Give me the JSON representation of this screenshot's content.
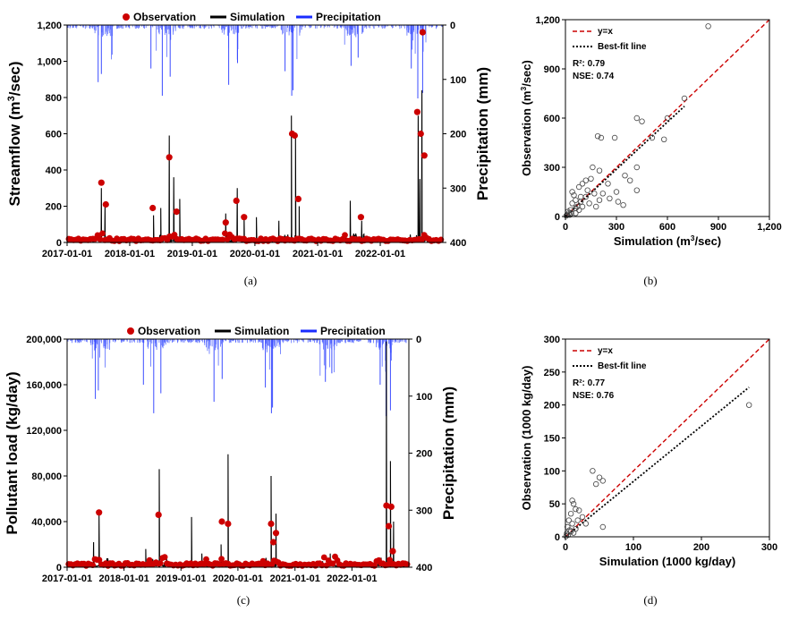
{
  "chart_data": [
    {
      "id": "a",
      "type": "line",
      "panel_label": "(a)",
      "ylabel": "Streamflow (m³/sec)",
      "y2label": "Precipitation (mm)",
      "legend": {
        "obs": "Observation",
        "sim": "Simulation",
        "pre": "Precipitation"
      },
      "ylim": [
        0,
        1200
      ],
      "yticks": [
        "0",
        "200",
        "400",
        "600",
        "800",
        "1,000",
        "1,200"
      ],
      "y2lim": [
        0,
        400
      ],
      "y2ticks": [
        "0",
        "100",
        "200",
        "300",
        "400"
      ],
      "xticks": [
        "2017-01-01",
        "2018-01-01",
        "2019-01-01",
        "2020-01-01",
        "2021-01-01",
        "2022-01-01"
      ],
      "xrange": [
        "2017-01-01",
        "2023-01-01"
      ],
      "sim_peaks": [
        [
          "2017-07-20",
          300
        ],
        [
          "2017-08-10",
          200
        ],
        [
          "2018-05-20",
          150
        ],
        [
          "2018-07-01",
          190
        ],
        [
          "2018-08-20",
          590
        ],
        [
          "2018-09-15",
          360
        ],
        [
          "2018-10-20",
          240
        ],
        [
          "2019-07-15",
          160
        ],
        [
          "2019-09-20",
          300
        ],
        [
          "2019-10-30",
          150
        ],
        [
          "2020-01-10",
          140
        ],
        [
          "2020-05-20",
          120
        ],
        [
          "2020-08-01",
          700
        ],
        [
          "2020-08-25",
          600
        ],
        [
          "2020-09-15",
          200
        ],
        [
          "2021-07-10",
          230
        ],
        [
          "2021-09-15",
          120
        ],
        [
          "2022-08-10",
          700
        ],
        [
          "2022-08-20",
          350
        ],
        [
          "2022-09-01",
          840
        ]
      ],
      "obs_peaks": [
        [
          "2017-07-20",
          330
        ],
        [
          "2017-08-15",
          210
        ],
        [
          "2018-05-15",
          190
        ],
        [
          "2018-08-20",
          470
        ],
        [
          "2018-10-01",
          170
        ],
        [
          "2019-07-15",
          110
        ],
        [
          "2019-09-15",
          230
        ],
        [
          "2019-10-30",
          140
        ],
        [
          "2020-08-05",
          600
        ],
        [
          "2020-08-20",
          590
        ],
        [
          "2020-09-10",
          240
        ],
        [
          "2021-09-10",
          140
        ],
        [
          "2022-08-05",
          720
        ],
        [
          "2022-08-25",
          600
        ],
        [
          "2022-09-05",
          1160
        ],
        [
          "2022-09-15",
          480
        ]
      ],
      "precip_peaks": [
        [
          "2017-07-01",
          105
        ],
        [
          "2017-07-20",
          90
        ],
        [
          "2018-05-05",
          80
        ],
        [
          "2018-07-10",
          130
        ],
        [
          "2018-08-25",
          95
        ],
        [
          "2019-08-01",
          110
        ],
        [
          "2019-09-22",
          70
        ],
        [
          "2020-06-25",
          85
        ],
        [
          "2020-08-03",
          130
        ],
        [
          "2020-08-10",
          120
        ],
        [
          "2021-07-15",
          75
        ],
        [
          "2021-08-25",
          60
        ],
        [
          "2022-07-01",
          80
        ],
        [
          "2022-08-08",
          135
        ],
        [
          "2022-09-05",
          125
        ]
      ]
    },
    {
      "id": "b",
      "type": "scatter",
      "panel_label": "(b)",
      "xlabel": "Simulation (m³/sec)",
      "ylabel": "Observation (m³/sec)",
      "xlim": [
        0,
        1200
      ],
      "ylim": [
        0,
        1200
      ],
      "xticks": [
        "0",
        "300",
        "600",
        "900",
        "1,200"
      ],
      "yticks": [
        "0",
        "300",
        "600",
        "900",
        "1,200"
      ],
      "legend": {
        "one_to_one": "y=x",
        "fit": "Best-fit line"
      },
      "stats": {
        "r2": "R²: 0.79",
        "nse": "NSE: 0.74"
      },
      "fit": {
        "slope": 0.96,
        "intercept": 0,
        "x_end": 700
      },
      "points": [
        [
          840,
          1160
        ],
        [
          700,
          720
        ],
        [
          600,
          600
        ],
        [
          420,
          600
        ],
        [
          450,
          580
        ],
        [
          290,
          480
        ],
        [
          190,
          490
        ],
        [
          210,
          480
        ],
        [
          580,
          470
        ],
        [
          510,
          480
        ],
        [
          350,
          250
        ],
        [
          420,
          300
        ],
        [
          160,
          300
        ],
        [
          200,
          280
        ],
        [
          380,
          220
        ],
        [
          420,
          160
        ],
        [
          250,
          200
        ],
        [
          300,
          150
        ],
        [
          150,
          230
        ],
        [
          100,
          200
        ],
        [
          120,
          220
        ],
        [
          80,
          180
        ],
        [
          90,
          120
        ],
        [
          130,
          160
        ],
        [
          60,
          100
        ],
        [
          170,
          140
        ],
        [
          50,
          130
        ],
        [
          220,
          140
        ],
        [
          260,
          110
        ],
        [
          310,
          90
        ],
        [
          340,
          70
        ],
        [
          40,
          80
        ],
        [
          70,
          60
        ],
        [
          30,
          40
        ],
        [
          20,
          20
        ],
        [
          10,
          10
        ],
        [
          5,
          5
        ],
        [
          15,
          30
        ],
        [
          25,
          10
        ],
        [
          60,
          20
        ],
        [
          80,
          40
        ],
        [
          100,
          60
        ],
        [
          140,
          80
        ],
        [
          180,
          60
        ],
        [
          200,
          100
        ],
        [
          120,
          120
        ],
        [
          40,
          150
        ],
        [
          60,
          50
        ],
        [
          35,
          20
        ],
        [
          90,
          90
        ]
      ]
    },
    {
      "id": "c",
      "type": "line",
      "panel_label": "(c)",
      "ylabel": "Pollutant load (kg/day)",
      "y2label": "Precipitation (mm)",
      "legend": {
        "obs": "Observation",
        "sim": "Simulation",
        "pre": "Precipitation"
      },
      "ylim": [
        0,
        200000
      ],
      "yticks": [
        "0",
        "40,000",
        "80,000",
        "120,000",
        "160,000",
        "200,000"
      ],
      "y2lim": [
        0,
        400
      ],
      "y2ticks": [
        "0",
        "100",
        "200",
        "300",
        "400"
      ],
      "xticks": [
        "2017-01-01",
        "2018-01-01",
        "2019-01-01",
        "2020-01-01",
        "2021-01-01",
        "2022-01-01"
      ],
      "xrange": [
        "2017-01-01",
        "2023-01-01"
      ],
      "sim_peaks": [
        [
          "2017-06-20",
          22000
        ],
        [
          "2017-07-25",
          47000
        ],
        [
          "2018-05-20",
          16000
        ],
        [
          "2018-08-15",
          86000
        ],
        [
          "2018-10-01",
          10000
        ],
        [
          "2019-03-10",
          44000
        ],
        [
          "2019-05-15",
          12000
        ],
        [
          "2019-09-15",
          20000
        ],
        [
          "2019-10-30",
          99000
        ],
        [
          "2020-08-01",
          80000
        ],
        [
          "2020-09-01",
          47000
        ],
        [
          "2021-08-15",
          12000
        ],
        [
          "2022-08-10",
          198000
        ],
        [
          "2022-09-05",
          93000
        ],
        [
          "2022-09-25",
          40000
        ]
      ],
      "obs_peaks": [
        [
          "2017-07-25",
          48000
        ],
        [
          "2018-08-10",
          46000
        ],
        [
          "2019-09-20",
          40000
        ],
        [
          "2019-10-30",
          38000
        ],
        [
          "2020-08-01",
          38000
        ],
        [
          "2020-08-15",
          22000
        ],
        [
          "2020-09-01",
          30000
        ],
        [
          "2022-08-10",
          54000
        ],
        [
          "2022-08-25",
          36000
        ],
        [
          "2022-09-10",
          53000
        ],
        [
          "2022-09-20",
          14000
        ]
      ],
      "precip_peaks": [
        [
          "2017-07-01",
          105
        ],
        [
          "2017-07-20",
          90
        ],
        [
          "2018-05-05",
          80
        ],
        [
          "2018-07-10",
          130
        ],
        [
          "2018-08-25",
          95
        ],
        [
          "2019-08-01",
          110
        ],
        [
          "2019-09-22",
          70
        ],
        [
          "2020-06-25",
          85
        ],
        [
          "2020-08-03",
          130
        ],
        [
          "2020-08-10",
          120
        ],
        [
          "2021-07-15",
          75
        ],
        [
          "2021-08-25",
          60
        ],
        [
          "2022-07-01",
          80
        ],
        [
          "2022-08-08",
          135
        ],
        [
          "2022-09-05",
          125
        ]
      ]
    },
    {
      "id": "d",
      "type": "scatter",
      "panel_label": "(d)",
      "xlabel": "Simulation (1000 kg/day)",
      "ylabel": "Observation (1000 kg/day)",
      "xlim": [
        0,
        300
      ],
      "ylim": [
        0,
        300
      ],
      "xticks": [
        "0",
        "100",
        "200",
        "300"
      ],
      "yticks": [
        "0",
        "50",
        "100",
        "150",
        "200",
        "250",
        "300"
      ],
      "legend": {
        "one_to_one": "y=x",
        "fit": "Best-fit line"
      },
      "stats": {
        "r2": "R²: 0.77",
        "nse": "NSE: 0.76"
      },
      "fit": {
        "slope": 0.84,
        "intercept": 0,
        "x_end": 270
      },
      "points": [
        [
          270,
          200
        ],
        [
          40,
          100
        ],
        [
          50,
          90
        ],
        [
          45,
          80
        ],
        [
          55,
          85
        ],
        [
          10,
          55
        ],
        [
          12,
          50
        ],
        [
          15,
          42
        ],
        [
          20,
          40
        ],
        [
          8,
          35
        ],
        [
          25,
          30
        ],
        [
          5,
          25
        ],
        [
          10,
          20
        ],
        [
          3,
          15
        ],
        [
          6,
          10
        ],
        [
          2,
          5
        ],
        [
          4,
          3
        ],
        [
          1,
          1
        ],
        [
          15,
          12
        ],
        [
          30,
          20
        ],
        [
          55,
          15
        ],
        [
          8,
          8
        ],
        [
          12,
          6
        ],
        [
          18,
          25
        ]
      ]
    }
  ]
}
